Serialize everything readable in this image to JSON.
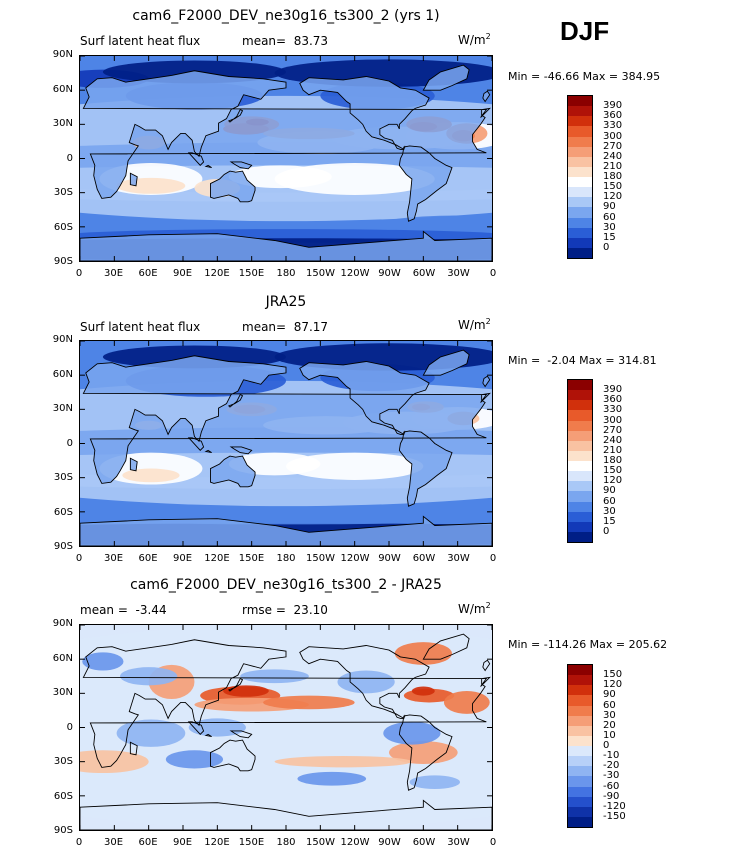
{
  "season": "DJF",
  "units_base": "W/m",
  "units_exp": "2",
  "lat_labels": [
    "90N",
    "60N",
    "30N",
    "0",
    "30S",
    "60S",
    "90S"
  ],
  "lon_labels": [
    "0",
    "30E",
    "60E",
    "90E",
    "120E",
    "150E",
    "180",
    "150W",
    "120W",
    "90W",
    "60W",
    "30W",
    "0"
  ],
  "panels": [
    {
      "title": "cam6_F2000_DEV_ne30g16_ts300_2 (yrs 1)",
      "left_text": "Surf latent heat flux",
      "stat1": "mean=  83.73",
      "stat2": "",
      "minmax": "Min = -46.66 Max = 384.95",
      "colorbar": {
        "labels": [
          "390",
          "360",
          "330",
          "300",
          "270",
          "240",
          "210",
          "180",
          "150",
          "120",
          "90",
          "60",
          "30",
          "15",
          "0"
        ],
        "colors": [
          "#8b0000",
          "#b01208",
          "#d1300c",
          "#e85a2a",
          "#f07c4c",
          "#f59e77",
          "#f9c2a2",
          "#fce2cc",
          "#ffffff",
          "#d9e6fb",
          "#a9c8f6",
          "#7aa6ef",
          "#4e84e6",
          "#2a5ed6",
          "#1239b8",
          "#001e86"
        ]
      },
      "chart_data": {
        "type": "heatmap",
        "title": "cam6_F2000_DEV_ne30g16_ts300_2 (yrs 1)",
        "variable": "Surf latent heat flux",
        "units": "W/m2",
        "mean": 83.73,
        "min": -46.66,
        "max": 384.95,
        "contour_levels": [
          0,
          15,
          30,
          60,
          90,
          120,
          150,
          180,
          210,
          240,
          270,
          300,
          330,
          360,
          390
        ],
        "xlabels": [
          "0",
          "30E",
          "60E",
          "90E",
          "120E",
          "150E",
          "180",
          "150W",
          "120W",
          "90W",
          "60W",
          "30W",
          "0"
        ],
        "ylabels": [
          "90N",
          "60N",
          "30N",
          "0",
          "30S",
          "60S",
          "90S"
        ],
        "xlim": [
          0,
          360
        ],
        "ylim": [
          -90,
          90
        ]
      }
    },
    {
      "title": "JRA25",
      "left_text": "Surf latent heat flux",
      "stat1": "mean=  87.17",
      "stat2": "",
      "minmax": "Min =  -2.04 Max = 314.81",
      "colorbar": {
        "labels": [
          "390",
          "360",
          "330",
          "300",
          "270",
          "240",
          "210",
          "180",
          "150",
          "120",
          "90",
          "60",
          "30",
          "15",
          "0"
        ],
        "colors": [
          "#8b0000",
          "#b01208",
          "#d1300c",
          "#e85a2a",
          "#f07c4c",
          "#f59e77",
          "#f9c2a2",
          "#fce2cc",
          "#ffffff",
          "#d9e6fb",
          "#a9c8f6",
          "#7aa6ef",
          "#4e84e6",
          "#2a5ed6",
          "#1239b8",
          "#001e86"
        ]
      },
      "chart_data": {
        "type": "heatmap",
        "title": "JRA25",
        "variable": "Surf latent heat flux",
        "units": "W/m2",
        "mean": 87.17,
        "min": -2.04,
        "max": 314.81,
        "contour_levels": [
          0,
          15,
          30,
          60,
          90,
          120,
          150,
          180,
          210,
          240,
          270,
          300,
          330,
          360,
          390
        ],
        "xlabels": [
          "0",
          "30E",
          "60E",
          "90E",
          "120E",
          "150E",
          "180",
          "150W",
          "120W",
          "90W",
          "60W",
          "30W",
          "0"
        ],
        "ylabels": [
          "90N",
          "60N",
          "30N",
          "0",
          "30S",
          "60S",
          "90S"
        ],
        "xlim": [
          0,
          360
        ],
        "ylim": [
          -90,
          90
        ]
      }
    },
    {
      "title": "cam6_F2000_DEV_ne30g16_ts300_2 - JRA25",
      "left_text": "mean =  -3.44",
      "stat1": "rmse =  23.10",
      "stat2": "",
      "minmax": "Min = -114.26 Max = 205.62",
      "colorbar": {
        "labels": [
          "150",
          "120",
          "90",
          "60",
          "30",
          "20",
          "10",
          "0",
          "-10",
          "-20",
          "-30",
          "-60",
          "-90",
          "-120",
          "-150"
        ],
        "colors": [
          "#8b0000",
          "#b01208",
          "#d1300c",
          "#e85a2a",
          "#f07c4c",
          "#f59e77",
          "#f9c2a2",
          "#fce2cc",
          "#dbe8fb",
          "#b7d0f8",
          "#8fb4f2",
          "#6a96ec",
          "#4373e2",
          "#2450cc",
          "#0f32a8",
          "#001e86"
        ]
      },
      "chart_data": {
        "type": "heatmap",
        "title": "cam6_F2000_DEV_ne30g16_ts300_2 - JRA25",
        "units": "W/m2",
        "mean": -3.44,
        "rmse": 23.1,
        "min": -114.26,
        "max": 205.62,
        "contour_levels": [
          -150,
          -120,
          -90,
          -60,
          -30,
          -20,
          -10,
          0,
          10,
          20,
          30,
          60,
          90,
          120,
          150
        ],
        "xlabels": [
          "0",
          "30E",
          "60E",
          "90E",
          "120E",
          "150E",
          "180",
          "150W",
          "120W",
          "90W",
          "60W",
          "30W",
          "0"
        ],
        "ylabels": [
          "90N",
          "60N",
          "30N",
          "0",
          "30S",
          "60S",
          "90S"
        ],
        "xlim": [
          0,
          360
        ],
        "ylim": [
          -90,
          90
        ]
      }
    }
  ]
}
